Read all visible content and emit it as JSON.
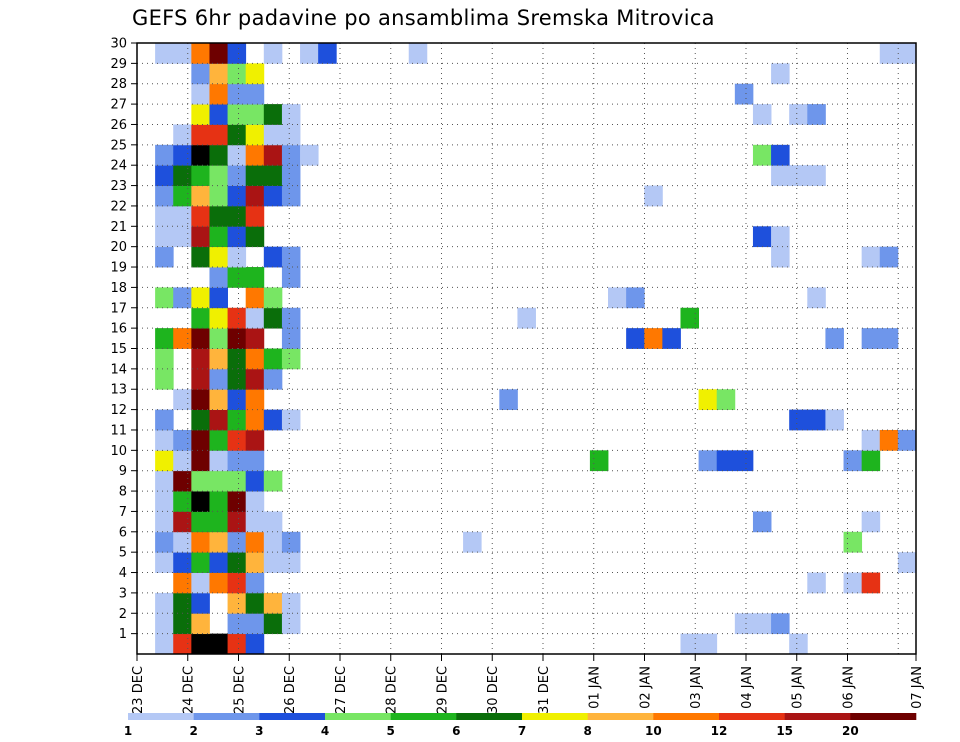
{
  "chart_data": {
    "type": "heatmap",
    "title": "GEFS 6hr padavine po ansamblima Sremska Mitrovica",
    "y_ticks": [
      "1",
      "2",
      "3",
      "4",
      "5",
      "6",
      "7",
      "8",
      "9",
      "10",
      "11",
      "12",
      "13",
      "14",
      "15",
      "16",
      "17",
      "18",
      "19",
      "20",
      "21",
      "22",
      "23",
      "24",
      "25",
      "26",
      "27",
      "28",
      "29",
      "30"
    ],
    "x_ticks": [
      "23 DEC",
      "24 DEC",
      "25 DEC",
      "26 DEC",
      "27 DEC",
      "28 DEC",
      "29 DEC",
      "30 DEC",
      "31 DEC",
      "01 JAN",
      "02 JAN",
      "03 JAN",
      "04 JAN",
      "05 JAN",
      "06 JAN",
      "07 JAN"
    ],
    "grid": true,
    "legend": {
      "placement": "bottom",
      "levels": [
        "1",
        "2",
        "3",
        "4",
        "5",
        "6",
        "7",
        "8",
        "10",
        "12",
        "15",
        "20"
      ],
      "colors": [
        "#b4c8f5",
        "#6e96eb",
        "#1e50dc",
        "#78e664",
        "#1eb41e",
        "#0a6e0a",
        "#f0f000",
        "#ffb43c",
        "#ff7800",
        "#e63214",
        "#aa1414",
        "#6e0000"
      ]
    },
    "cells": [
      {
        "m": 1,
        "t": [
          [
            1,
            1
          ],
          [
            2,
            10
          ],
          [
            3,
            13
          ],
          [
            4,
            14
          ],
          [
            5,
            10
          ],
          [
            6,
            3
          ],
          [
            30,
            1
          ],
          [
            31,
            1
          ],
          [
            36,
            1
          ]
        ]
      },
      {
        "m": 2,
        "t": [
          [
            1,
            1
          ],
          [
            2,
            6
          ],
          [
            3,
            8
          ],
          [
            5,
            2
          ],
          [
            6,
            2
          ],
          [
            7,
            6
          ],
          [
            8,
            1
          ],
          [
            33,
            1
          ],
          [
            34,
            1
          ],
          [
            35,
            2
          ]
        ]
      },
      {
        "m": 3,
        "t": [
          [
            1,
            1
          ],
          [
            2,
            6
          ],
          [
            3,
            3
          ],
          [
            5,
            8
          ],
          [
            6,
            6
          ],
          [
            7,
            8
          ],
          [
            8,
            1
          ]
        ]
      },
      {
        "m": 4,
        "t": [
          [
            2,
            9
          ],
          [
            3,
            1
          ],
          [
            4,
            9
          ],
          [
            5,
            10
          ],
          [
            6,
            2
          ],
          [
            37,
            1
          ],
          [
            39,
            1
          ],
          [
            40,
            10
          ]
        ]
      },
      {
        "m": 5,
        "t": [
          [
            1,
            1
          ],
          [
            2,
            3
          ],
          [
            3,
            5
          ],
          [
            4,
            3
          ],
          [
            5,
            6
          ],
          [
            6,
            8
          ],
          [
            7,
            1
          ],
          [
            8,
            1
          ],
          [
            42,
            1
          ]
        ]
      },
      {
        "m": 6,
        "t": [
          [
            1,
            2
          ],
          [
            2,
            1
          ],
          [
            3,
            9
          ],
          [
            4,
            8
          ],
          [
            5,
            2
          ],
          [
            6,
            9
          ],
          [
            7,
            1
          ],
          [
            8,
            2
          ],
          [
            18,
            1
          ],
          [
            39,
            4
          ]
        ]
      },
      {
        "m": 7,
        "t": [
          [
            1,
            1
          ],
          [
            2,
            11
          ],
          [
            3,
            5
          ],
          [
            4,
            5
          ],
          [
            5,
            11
          ],
          [
            6,
            1
          ],
          [
            7,
            1
          ],
          [
            34,
            2
          ],
          [
            40,
            1
          ]
        ]
      },
      {
        "m": 8,
        "t": [
          [
            1,
            1
          ],
          [
            2,
            5
          ],
          [
            3,
            13
          ],
          [
            4,
            5
          ],
          [
            5,
            12
          ],
          [
            6,
            1
          ]
        ]
      },
      {
        "m": 9,
        "t": [
          [
            1,
            1
          ],
          [
            2,
            12
          ],
          [
            3,
            4
          ],
          [
            4,
            4
          ],
          [
            5,
            4
          ],
          [
            6,
            3
          ],
          [
            7,
            4
          ]
        ]
      },
      {
        "m": 10,
        "t": [
          [
            1,
            7
          ],
          [
            2,
            1
          ],
          [
            3,
            12
          ],
          [
            4,
            1
          ],
          [
            5,
            2
          ],
          [
            6,
            2
          ],
          [
            25,
            5
          ],
          [
            31,
            2
          ],
          [
            32,
            3
          ],
          [
            33,
            3
          ],
          [
            39,
            2
          ],
          [
            40,
            5
          ]
        ]
      },
      {
        "m": 11,
        "t": [
          [
            1,
            1
          ],
          [
            2,
            2
          ],
          [
            3,
            12
          ],
          [
            4,
            5
          ],
          [
            5,
            10
          ],
          [
            6,
            11
          ],
          [
            40,
            1
          ],
          [
            41,
            9
          ],
          [
            42,
            2
          ]
        ]
      },
      {
        "m": 12,
        "t": [
          [
            1,
            2
          ],
          [
            3,
            6
          ],
          [
            4,
            11
          ],
          [
            5,
            5
          ],
          [
            6,
            9
          ],
          [
            7,
            3
          ],
          [
            8,
            1
          ],
          [
            36,
            3
          ],
          [
            37,
            3
          ],
          [
            38,
            1
          ]
        ]
      },
      {
        "m": 13,
        "t": [
          [
            2,
            1
          ],
          [
            3,
            12
          ],
          [
            4,
            8
          ],
          [
            5,
            3
          ],
          [
            6,
            9
          ],
          [
            20,
            2
          ],
          [
            31,
            7
          ],
          [
            32,
            4
          ]
        ]
      },
      {
        "m": 14,
        "t": [
          [
            1,
            4
          ],
          [
            3,
            11
          ],
          [
            4,
            2
          ],
          [
            5,
            6
          ],
          [
            6,
            11
          ],
          [
            7,
            2
          ]
        ]
      },
      {
        "m": 15,
        "t": [
          [
            1,
            4
          ],
          [
            3,
            11
          ],
          [
            4,
            8
          ],
          [
            5,
            6
          ],
          [
            6,
            9
          ],
          [
            7,
            5
          ],
          [
            8,
            4
          ]
        ]
      },
      {
        "m": 16,
        "t": [
          [
            1,
            5
          ],
          [
            2,
            9
          ],
          [
            3,
            12
          ],
          [
            4,
            4
          ],
          [
            5,
            12
          ],
          [
            6,
            11
          ],
          [
            8,
            2
          ],
          [
            27,
            3
          ],
          [
            28,
            9
          ],
          [
            29,
            3
          ],
          [
            38,
            2
          ],
          [
            40,
            2
          ],
          [
            41,
            2
          ]
        ]
      },
      {
        "m": 17,
        "t": [
          [
            3,
            5
          ],
          [
            4,
            7
          ],
          [
            5,
            10
          ],
          [
            6,
            1
          ],
          [
            7,
            6
          ],
          [
            8,
            2
          ],
          [
            21,
            1
          ],
          [
            30,
            5
          ]
        ]
      },
      {
        "m": 18,
        "t": [
          [
            1,
            4
          ],
          [
            2,
            2
          ],
          [
            3,
            7
          ],
          [
            4,
            3
          ],
          [
            6,
            9
          ],
          [
            7,
            4
          ],
          [
            26,
            1
          ],
          [
            27,
            2
          ],
          [
            37,
            1
          ]
        ]
      },
      {
        "m": 19,
        "t": [
          [
            4,
            2
          ],
          [
            5,
            5
          ],
          [
            6,
            5
          ],
          [
            8,
            2
          ]
        ]
      },
      {
        "m": 20,
        "t": [
          [
            1,
            2
          ],
          [
            3,
            6
          ],
          [
            4,
            7
          ],
          [
            5,
            1
          ],
          [
            7,
            3
          ],
          [
            8,
            2
          ],
          [
            35,
            1
          ],
          [
            40,
            1
          ],
          [
            41,
            2
          ]
        ]
      },
      {
        "m": 21,
        "t": [
          [
            1,
            1
          ],
          [
            2,
            1
          ],
          [
            3,
            11
          ],
          [
            4,
            5
          ],
          [
            5,
            3
          ],
          [
            6,
            6
          ],
          [
            34,
            3
          ],
          [
            35,
            1
          ]
        ]
      },
      {
        "m": 22,
        "t": [
          [
            1,
            1
          ],
          [
            2,
            1
          ],
          [
            3,
            10
          ],
          [
            4,
            6
          ],
          [
            5,
            6
          ],
          [
            6,
            10
          ]
        ]
      },
      {
        "m": 23,
        "t": [
          [
            1,
            2
          ],
          [
            2,
            5
          ],
          [
            3,
            8
          ],
          [
            4,
            4
          ],
          [
            5,
            3
          ],
          [
            6,
            11
          ],
          [
            7,
            3
          ],
          [
            8,
            2
          ],
          [
            28,
            1
          ]
        ]
      },
      {
        "m": 24,
        "t": [
          [
            1,
            3
          ],
          [
            2,
            6
          ],
          [
            3,
            5
          ],
          [
            4,
            4
          ],
          [
            5,
            2
          ],
          [
            6,
            6
          ],
          [
            7,
            6
          ],
          [
            8,
            2
          ],
          [
            35,
            1
          ],
          [
            36,
            1
          ],
          [
            37,
            1
          ]
        ]
      },
      {
        "m": 25,
        "t": [
          [
            1,
            2
          ],
          [
            2,
            3
          ],
          [
            3,
            13
          ],
          [
            4,
            6
          ],
          [
            5,
            1
          ],
          [
            6,
            9
          ],
          [
            7,
            11
          ],
          [
            8,
            2
          ],
          [
            9,
            1
          ],
          [
            34,
            4
          ],
          [
            35,
            3
          ]
        ]
      },
      {
        "m": 26,
        "t": [
          [
            2,
            1
          ],
          [
            3,
            10
          ],
          [
            4,
            10
          ],
          [
            5,
            6
          ],
          [
            6,
            7
          ],
          [
            7,
            1
          ],
          [
            8,
            1
          ]
        ]
      },
      {
        "m": 27,
        "t": [
          [
            3,
            7
          ],
          [
            4,
            3
          ],
          [
            5,
            4
          ],
          [
            6,
            4
          ],
          [
            7,
            6
          ],
          [
            8,
            1
          ],
          [
            34,
            1
          ],
          [
            36,
            1
          ],
          [
            37,
            2
          ]
        ]
      },
      {
        "m": 28,
        "t": [
          [
            3,
            1
          ],
          [
            4,
            9
          ],
          [
            5,
            2
          ],
          [
            6,
            2
          ],
          [
            33,
            2
          ]
        ]
      },
      {
        "m": 29,
        "t": [
          [
            3,
            2
          ],
          [
            4,
            8
          ],
          [
            5,
            4
          ],
          [
            6,
            7
          ],
          [
            35,
            1
          ]
        ]
      },
      {
        "m": 30,
        "t": [
          [
            1,
            1
          ],
          [
            2,
            1
          ],
          [
            3,
            9
          ],
          [
            4,
            12
          ],
          [
            5,
            3
          ],
          [
            7,
            1
          ],
          [
            9,
            1
          ],
          [
            10,
            3
          ],
          [
            15,
            1
          ],
          [
            41,
            1
          ],
          [
            42,
            1
          ]
        ]
      }
    ]
  }
}
